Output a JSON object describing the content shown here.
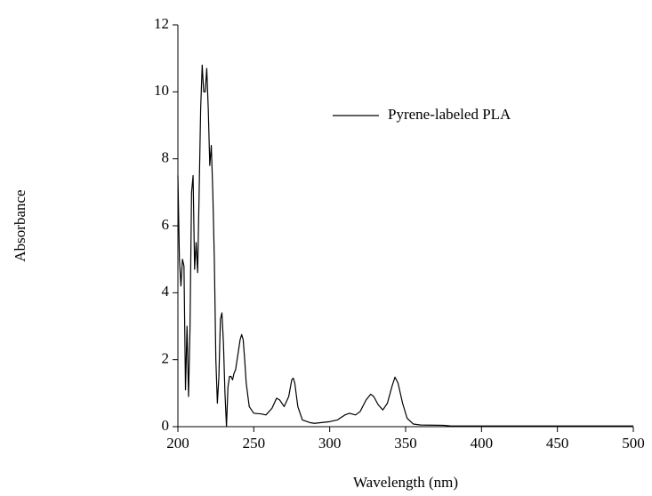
{
  "chart_data": {
    "type": "line",
    "x_label": "Wavelength (nm)",
    "y_label": "Absorbance",
    "xlim": [
      200,
      500
    ],
    "ylim": [
      0,
      12
    ],
    "xticks": [
      200,
      250,
      300,
      350,
      400,
      450,
      500
    ],
    "yticks": [
      0,
      2,
      4,
      6,
      8,
      10,
      12
    ],
    "legend": "upper right",
    "x": [
      200,
      201,
      202,
      203,
      204,
      205,
      206,
      207,
      208,
      209,
      210,
      211,
      212,
      213,
      214,
      215,
      216,
      217,
      218,
      219,
      220,
      221,
      222,
      223,
      224,
      225,
      226,
      227,
      228,
      229,
      230,
      231,
      232,
      233,
      234,
      235,
      236,
      237,
      238,
      239,
      240,
      241,
      242,
      243,
      244,
      245,
      247,
      250,
      255,
      258,
      262,
      265,
      267,
      270,
      273,
      275,
      276,
      277,
      279,
      282,
      287,
      290,
      300,
      305,
      310,
      313,
      317,
      320,
      324,
      327,
      329,
      332,
      335,
      338,
      341,
      343,
      345,
      348,
      351,
      355,
      360,
      375,
      380,
      400,
      450,
      500
    ],
    "series": [
      {
        "name": "Pyrene-labeled PLA",
        "color": "#000000",
        "values": [
          7.5,
          5,
          4.2,
          5.0,
          4.8,
          1.1,
          3.0,
          0.9,
          3,
          7.0,
          7.5,
          4.7,
          5.5,
          4.6,
          7,
          9.5,
          10.8,
          10.0,
          10.0,
          10.7,
          9.5,
          7.8,
          8.4,
          7,
          5,
          2,
          0.7,
          1.5,
          3.2,
          3.4,
          2.5,
          1,
          0,
          1.2,
          1.5,
          1.5,
          1.4,
          1.6,
          1.7,
          2.0,
          2.3,
          2.6,
          2.75,
          2.6,
          2.0,
          1.3,
          0.6,
          0.4,
          0.38,
          0.35,
          0.55,
          0.85,
          0.8,
          0.6,
          0.9,
          1.4,
          1.45,
          1.3,
          0.6,
          0.2,
          0.12,
          0.1,
          0.15,
          0.2,
          0.35,
          0.4,
          0.35,
          0.45,
          0.8,
          0.97,
          0.9,
          0.65,
          0.5,
          0.7,
          1.2,
          1.48,
          1.3,
          0.7,
          0.25,
          0.08,
          0.05,
          0.04,
          0.02,
          0.02,
          0.02,
          0.02
        ]
      }
    ]
  }
}
